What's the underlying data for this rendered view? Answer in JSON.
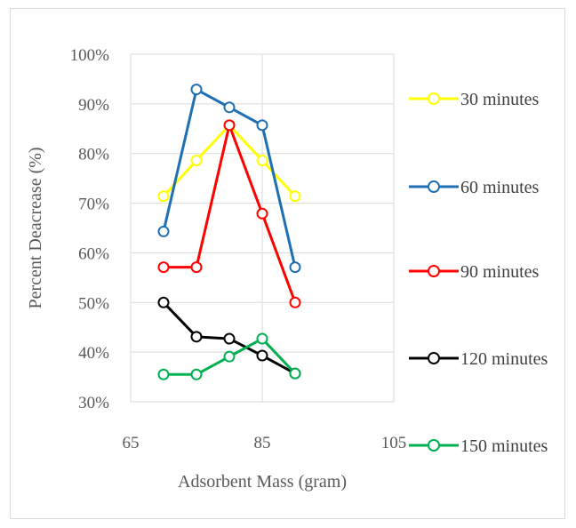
{
  "chart_data": {
    "type": "line",
    "title": "",
    "xlabel": "Adsorbent Mass (gram)",
    "ylabel": "Percent Deacrease (%)",
    "xlim": [
      65,
      105
    ],
    "ylim": [
      0.3,
      1.0
    ],
    "x_ticks": [
      65,
      85,
      105
    ],
    "y_ticks": [
      0.3,
      0.4,
      0.5,
      0.6,
      0.7,
      0.8,
      0.9,
      1.0
    ],
    "y_tick_labels": [
      "30%",
      "40%",
      "50%",
      "60%",
      "70%",
      "80%",
      "90%",
      "100%"
    ],
    "x_tick_labels": [
      "65",
      "85",
      "105"
    ],
    "grid": true,
    "legend_position": "right",
    "x": [
      70,
      75,
      80,
      85,
      90
    ],
    "series": [
      {
        "name": "30 minutes",
        "color": "#ffff00",
        "values": [
          0.714,
          0.786,
          0.857,
          0.786,
          0.714
        ]
      },
      {
        "name": "60 minutes",
        "color": "#1f6fb5",
        "values": [
          0.643,
          0.929,
          0.893,
          0.857,
          0.571
        ]
      },
      {
        "name": "90 minutes",
        "color": "#ff0000",
        "values": [
          0.571,
          0.571,
          0.857,
          0.679,
          0.5
        ]
      },
      {
        "name": "120 minutes",
        "color": "#000000",
        "values": [
          0.5,
          0.431,
          0.427,
          0.393,
          0.357
        ]
      },
      {
        "name": "150 minutes",
        "color": "#00b050",
        "values": [
          0.355,
          0.355,
          0.391,
          0.427,
          0.357
        ]
      }
    ]
  }
}
